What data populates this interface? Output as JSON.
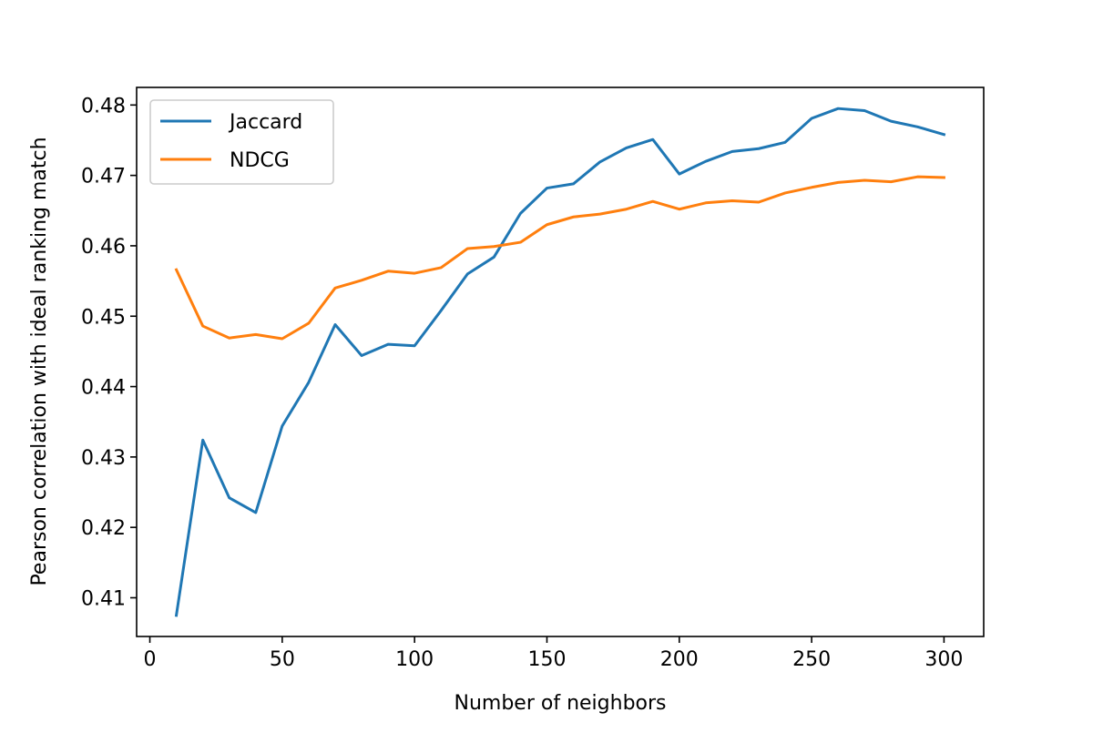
{
  "chart_data": {
    "type": "line",
    "title": "",
    "xlabel": "Number of neighbors",
    "ylabel": "Pearson correlation with ideal ranking match",
    "xlim": [
      -5,
      315
    ],
    "ylim": [
      0.4045,
      0.4825
    ],
    "xticks": [
      0,
      50,
      100,
      150,
      200,
      250,
      300
    ],
    "yticks": [
      0.41,
      0.42,
      0.43,
      0.44,
      0.45,
      0.46,
      0.47,
      0.48
    ],
    "xtick_labels": [
      "0",
      "50",
      "100",
      "150",
      "200",
      "250",
      "300"
    ],
    "ytick_labels": [
      "0.41",
      "0.42",
      "0.43",
      "0.44",
      "0.45",
      "0.46",
      "0.47",
      "0.48"
    ],
    "grid": false,
    "legend_position": "top-left",
    "x": [
      10,
      20,
      30,
      40,
      50,
      60,
      70,
      80,
      90,
      100,
      110,
      120,
      130,
      140,
      150,
      160,
      170,
      180,
      190,
      200,
      210,
      220,
      230,
      240,
      250,
      260,
      270,
      280,
      290,
      300
    ],
    "series": [
      {
        "name": "Jaccard",
        "color": "#1f77b4",
        "values": [
          0.4075,
          0.4324,
          0.4242,
          0.4221,
          0.4344,
          0.4406,
          0.4488,
          0.4444,
          0.446,
          0.4458,
          0.4508,
          0.456,
          0.4584,
          0.4646,
          0.4682,
          0.4688,
          0.4719,
          0.4739,
          0.4751,
          0.4702,
          0.472,
          0.4734,
          0.4738,
          0.4747,
          0.4781,
          0.4795,
          0.4792,
          0.4777,
          0.4769,
          0.4758
        ]
      },
      {
        "name": "NDCG",
        "color": "#ff7f0e",
        "values": [
          0.4566,
          0.4486,
          0.4469,
          0.4474,
          0.4468,
          0.449,
          0.454,
          0.4551,
          0.4564,
          0.4561,
          0.4569,
          0.4596,
          0.4599,
          0.4605,
          0.463,
          0.4641,
          0.4645,
          0.4652,
          0.4663,
          0.4652,
          0.4661,
          0.4664,
          0.4662,
          0.4675,
          0.4683,
          0.469,
          0.4693,
          0.4691,
          0.4698,
          0.4697
        ]
      }
    ]
  }
}
